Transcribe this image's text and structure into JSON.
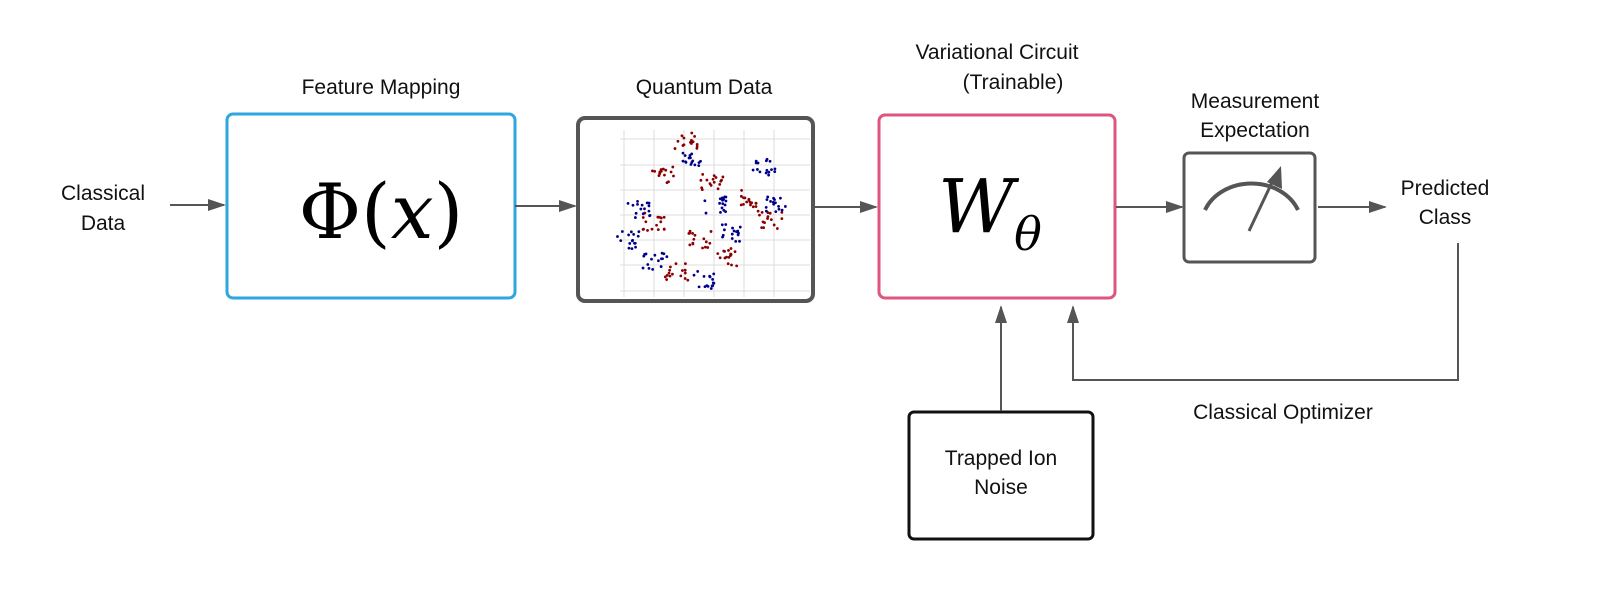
{
  "nodes": {
    "classical_data": {
      "line1": "Classical",
      "line2": "Data"
    },
    "feature_mapping": {
      "title": "Feature Mapping",
      "symbol_main": "Φ(",
      "symbol_var": "x",
      "symbol_close": ")",
      "color": "#2ea6e0"
    },
    "quantum_data": {
      "title": "Quantum Data",
      "color": "#555555",
      "class_colors": [
        "#8b0000",
        "#00008b"
      ]
    },
    "variational_circuit": {
      "title_line1": "Variational Circuit",
      "title_line2": "(Trainable)",
      "symbol": "W",
      "subscript": "θ",
      "color": "#e0557f"
    },
    "measurement": {
      "title_line1": "Measurement",
      "title_line2": "Expectation",
      "icon": "gauge-icon",
      "color": "#555555"
    },
    "predicted_class": {
      "line1": "Predicted",
      "line2": "Class"
    },
    "noise": {
      "line1": "Trapped Ion",
      "line2": "Noise",
      "color": "#111111"
    },
    "optimizer": {
      "label": "Classical Optimizer"
    }
  },
  "edge_color": "#555555"
}
